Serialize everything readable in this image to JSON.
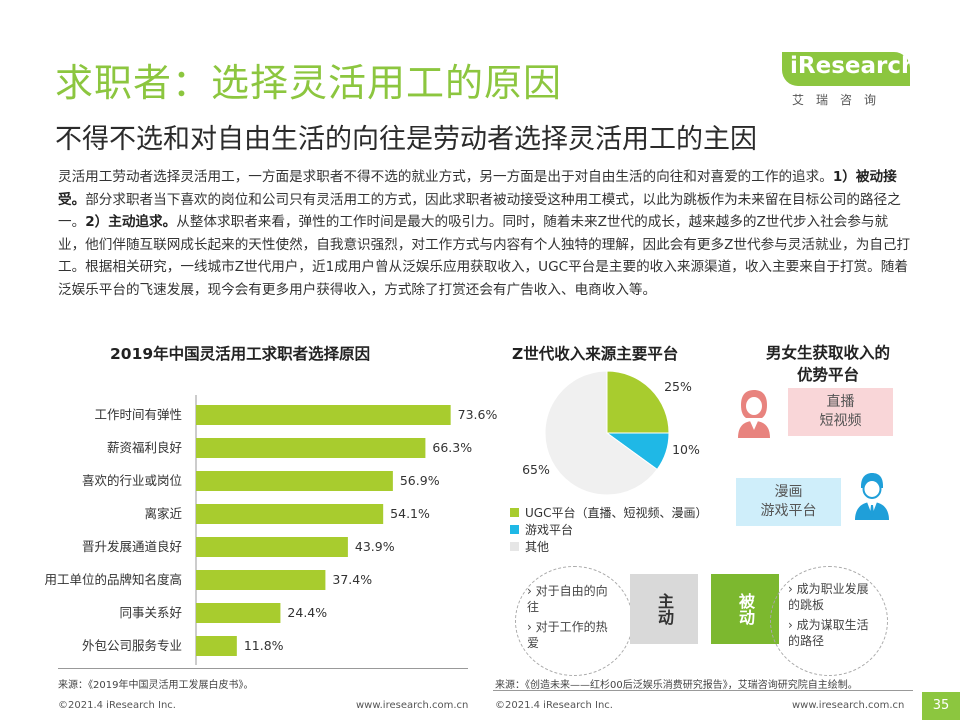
{
  "header": {
    "title": "求职者：选择灵活用工的原因",
    "subtitle": "不得不选和对自由生活的向往是劳动者选择灵活用工的主因",
    "logo_main": "iResearch",
    "logo_sub": "艾瑞咨询"
  },
  "intro": {
    "p1": "灵活用工劳动者选择灵活用工，一方面是求职者不得不选的就业方式，另一方面是出于对自由生活的向往和对喜爱的工作的追求。",
    "b1": "1）被动接受。",
    "p2": "部分求职者当下喜欢的岗位和公司只有灵活用工的方式，因此求职者被动接受这种用工模式，以此为跳板作为未来留在目标公司的路径之一。",
    "b2": "2）主动追求。",
    "p3": "从整体求职者来看，弹性的工作时间是最大的吸引力。同时，随着未来Z世代的成长，越来越多的Z世代步入社会参与就业，他们伴随互联网成长起来的天性使然，自我意识强烈，对工作方式与内容有个人独特的理解，因此会有更多Z世代参与灵活就业，为自己打工。根据相关研究，一线城市Z世代用户，近1成用户曾从泛娱乐应用获取收入，UGC平台是主要的收入来源渠道，收入主要来自于打赏。随着泛娱乐平台的飞速发展，现今会有更多用户获得收入，方式除了打赏还会有广告收入、电商收入等。"
  },
  "chart_data": [
    {
      "type": "bar",
      "title": "2019年中国灵活用工求职者选择原因",
      "categories": [
        "工作时间有弹性",
        "薪资福利良好",
        "喜欢的行业或岗位",
        "离家近",
        "晋升发展通道良好",
        "用工单位的品牌知名度高",
        "同事关系好",
        "外包公司服务专业"
      ],
      "values": [
        73.6,
        66.3,
        56.9,
        54.1,
        43.9,
        37.4,
        24.4,
        11.8
      ],
      "value_labels": [
        "73.6%",
        "66.3%",
        "56.9%",
        "54.1%",
        "43.9%",
        "37.4%",
        "24.4%",
        "11.8%"
      ],
      "orientation": "horizontal",
      "xlim": [
        0,
        100
      ],
      "color": "#a8cc2e",
      "source": "来源：《2019年中国灵活用工发展白皮书》。"
    },
    {
      "type": "pie",
      "title": "Z世代收入来源主要平台",
      "labels": [
        "UGC平台（直播、短视频、漫画）",
        "游戏平台",
        "其他"
      ],
      "values": [
        25,
        10,
        65
      ],
      "value_labels": [
        "25%",
        "10%",
        "65%"
      ],
      "colors": [
        "#a8cc2e",
        "#1fb8e6",
        "#f0f0f0"
      ],
      "source": "来源：《创造未来——红杉00后泛娱乐消费研究报告》，艾瑞咨询研究院自主绘制。"
    }
  ],
  "gender": {
    "title_line1": "男女生获取收入的",
    "title_line2": "优势平台",
    "female": [
      "直播",
      "短视频"
    ],
    "male": [
      "漫画",
      "游戏平台"
    ]
  },
  "reasons": {
    "active_label": "主动",
    "active_items": [
      "对于自由的向往",
      "对于工作的热爱"
    ],
    "passive_label": "被动",
    "passive_items": [
      "成为职业发展的跳板",
      "成为谋取生活的路径"
    ]
  },
  "footer": {
    "copyright_left": "©2021.4 iResearch Inc.",
    "url_left": "www.iresearch.com.cn",
    "copyright_right": "©2021.4 iResearch Inc.",
    "url_right": "www.iresearch.com.cn",
    "page": "35"
  }
}
